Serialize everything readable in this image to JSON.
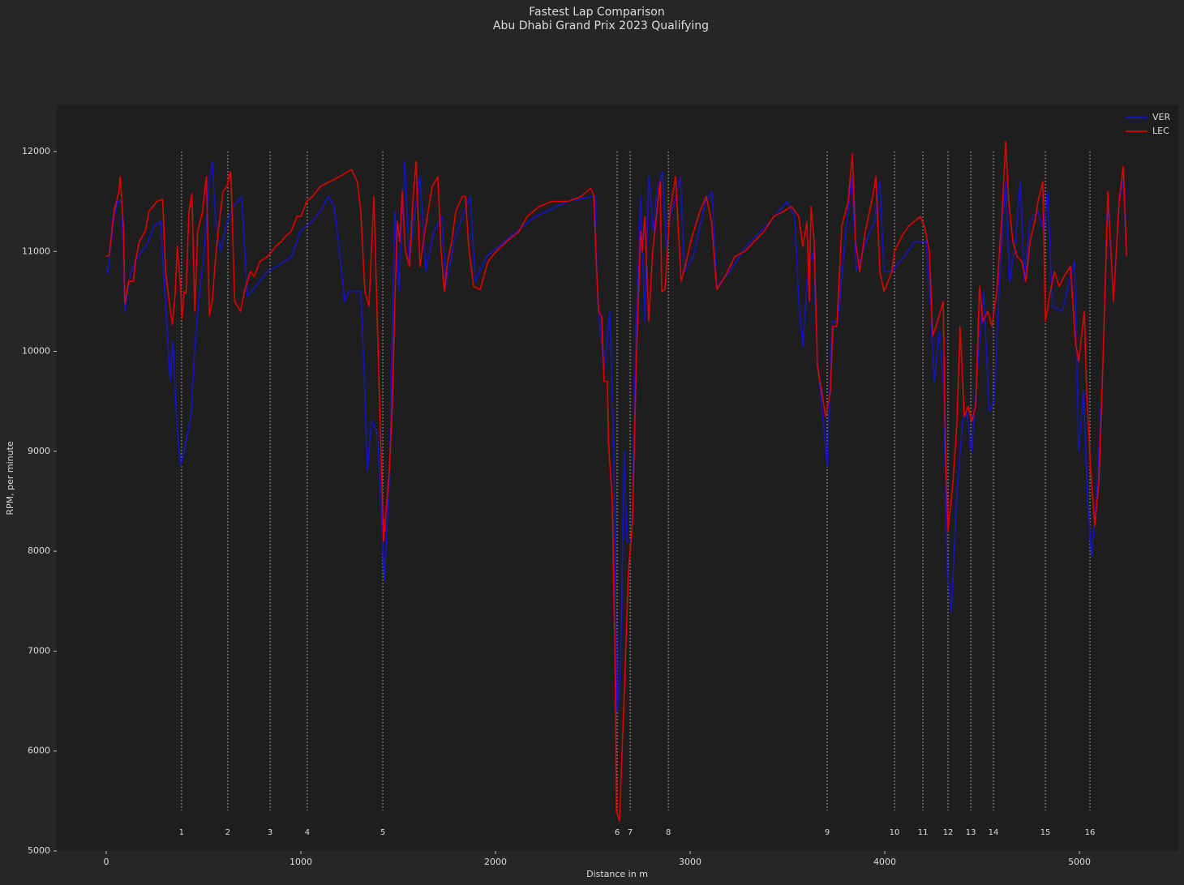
{
  "chart_data": {
    "type": "line",
    "title": "Fastest Lap Comparison",
    "subtitle": "Abu Dhabi Grand Prix 2023 Qualifying",
    "xlabel": "Distance in m",
    "ylabel": "RPM, per minute",
    "xlim": [
      -254,
      5508
    ],
    "ylim": [
      5000,
      12462
    ],
    "xticks": [
      0,
      1000,
      2000,
      3000,
      4000,
      5000
    ],
    "yticks": [
      5000,
      6000,
      7000,
      8000,
      9000,
      10000,
      11000,
      12000
    ],
    "legend": "upper right",
    "corners": {
      "numbers": [
        1,
        2,
        3,
        4,
        5,
        6,
        7,
        8,
        9,
        10,
        11,
        12,
        13,
        14,
        15,
        16
      ],
      "distance": [
        387,
        625,
        842,
        1033,
        1421,
        2625,
        2692,
        2888,
        3704,
        4050,
        4196,
        4325,
        4442,
        4558,
        4825,
        5054
      ]
    },
    "series": [
      {
        "name": "VER",
        "color": "#1414c8",
        "x": [
          0,
          8,
          37,
          58,
          79,
          96,
          121,
          162,
          204,
          246,
          279,
          304,
          329,
          342,
          362,
          383,
          421,
          437,
          454,
          475,
          504,
          529,
          546,
          562,
          587,
          621,
          654,
          696,
          725,
          767,
          829,
          892,
          954,
          996,
          1058,
          1100,
          1142,
          1171,
          1204,
          1225,
          1246,
          1308,
          1325,
          1342,
          1362,
          1392,
          1408,
          1429,
          1454,
          1483,
          1504,
          1533,
          1558,
          1579,
          1612,
          1642,
          1683,
          1725,
          1746,
          1787,
          1829,
          1871,
          1896,
          1954,
          2079,
          2204,
          2371,
          2496,
          2512,
          2525,
          2558,
          2587,
          2608,
          2625,
          2642,
          2662,
          2675,
          2700,
          2721,
          2746,
          2767,
          2787,
          2812,
          2829,
          2858,
          2879,
          2896,
          2921,
          2950,
          2971,
          3017,
          3079,
          3112,
          3137,
          3204,
          3287,
          3412,
          3496,
          3537,
          3558,
          3579,
          3604,
          3633,
          3654,
          3683,
          3704,
          3729,
          3758,
          3800,
          3829,
          3854,
          3904,
          3946,
          3975,
          3996,
          4037,
          4100,
          4154,
          4212,
          4237,
          4254,
          4279,
          4300,
          4321,
          4342,
          4371,
          4400,
          4421,
          4446,
          4483,
          4508,
          4537,
          4562,
          4592,
          4621,
          4642,
          4671,
          4696,
          4717,
          4746,
          4787,
          4817,
          4837,
          4862,
          4912,
          4954,
          4975,
          4996,
          5021,
          5042,
          5062,
          5087,
          5121,
          5146,
          5175,
          5204,
          5225,
          5242
        ],
        "values": [
          10850,
          10780,
          11300,
          11500,
          11500,
          10400,
          10750,
          10950,
          11050,
          11250,
          11300,
          10500,
          9700,
          10100,
          9300,
          8850,
          9200,
          9400,
          10000,
          10500,
          11000,
          11700,
          11900,
          11300,
          11000,
          11300,
          11450,
          11550,
          10550,
          10650,
          10800,
          10870,
          10950,
          11200,
          11300,
          11400,
          11550,
          11450,
          10900,
          10500,
          10600,
          10600,
          9800,
          8800,
          9300,
          9200,
          8600,
          7700,
          8700,
          11400,
          10600,
          11900,
          10900,
          11300,
          11750,
          10800,
          11200,
          11350,
          10650,
          11100,
          11350,
          11550,
          10700,
          10950,
          11150,
          11350,
          11500,
          11550,
          11550,
          10500,
          9800,
          10400,
          9000,
          6400,
          6800,
          9000,
          8100,
          8100,
          10200,
          11550,
          10300,
          11750,
          11200,
          11600,
          11800,
          11000,
          11350,
          11500,
          11750,
          10800,
          10950,
          11500,
          11600,
          10650,
          10800,
          11050,
          11300,
          11500,
          11350,
          10500,
          10050,
          10800,
          11000,
          9900,
          9300,
          8850,
          10300,
          10300,
          11200,
          11750,
          10800,
          11100,
          11300,
          11700,
          10800,
          10800,
          10950,
          11100,
          11100,
          10400,
          9700,
          10200,
          9700,
          7800,
          7400,
          8600,
          9300,
          9400,
          9000,
          10000,
          10600,
          9400,
          9500,
          10800,
          11700,
          10700,
          11100,
          11700,
          10700,
          11300,
          11400,
          11200,
          11600,
          10450,
          10400,
          10750,
          10900,
          9000,
          9600,
          8500,
          7950,
          8500,
          9900,
          11500,
          10500,
          11500,
          11700,
          10950
        ]
      },
      {
        "name": "LEC",
        "color": "#e00000",
        "x": [
          0,
          15,
          40,
          65,
          72,
          90,
          95,
          115,
          140,
          150,
          170,
          200,
          220,
          260,
          290,
          305,
          330,
          340,
          355,
          365,
          380,
          390,
          400,
          410,
          425,
          440,
          455,
          470,
          495,
          505,
          515,
          530,
          545,
          560,
          575,
          600,
          620,
          640,
          660,
          690,
          710,
          740,
          760,
          790,
          830,
          870,
          900,
          920,
          950,
          980,
          1000,
          1030,
          1060,
          1100,
          1200,
          1260,
          1290,
          1308,
          1329,
          1350,
          1375,
          1400,
          1425,
          1454,
          1471,
          1483,
          1496,
          1508,
          1521,
          1537,
          1558,
          1575,
          1592,
          1612,
          1629,
          1654,
          1675,
          1704,
          1721,
          1737,
          1754,
          1775,
          1796,
          1829,
          1846,
          1862,
          1887,
          1921,
          1962,
          2004,
          2058,
          2121,
          2162,
          2225,
          2287,
          2371,
          2440,
          2470,
          2490,
          2505,
          2515,
          2530,
          2545,
          2558,
          2575,
          2580,
          2600,
          2615,
          2621,
          2637,
          2662,
          2683,
          2704,
          2725,
          2746,
          2754,
          2767,
          2787,
          2808,
          2829,
          2846,
          2854,
          2871,
          2896,
          2925,
          2954,
          2980,
          3010,
          3050,
          3083,
          3110,
          3125,
          3137,
          3180,
          3230,
          3280,
          3330,
          3380,
          3430,
          3480,
          3520,
          3558,
          3579,
          3600,
          3612,
          3621,
          3637,
          3654,
          3696,
          3721,
          3733,
          3754,
          3779,
          3812,
          3833,
          3850,
          3871,
          3900,
          3933,
          3954,
          3975,
          3996,
          4037,
          4050,
          4087,
          4121,
          4183,
          4204,
          4229,
          4246,
          4271,
          4300,
          4312,
          4325,
          4350,
          4371,
          4387,
          4408,
          4429,
          4446,
          4467,
          4487,
          4504,
          4529,
          4550,
          4575,
          4600,
          4621,
          4637,
          4658,
          4679,
          4704,
          4725,
          4746,
          4771,
          4787,
          4812,
          4825,
          4846,
          4871,
          4896,
          4921,
          4954,
          4979,
          4996,
          5025,
          5037,
          5058,
          5079,
          5100,
          5121,
          5146,
          5175,
          5204,
          5225,
          5242
        ],
        "values": [
          10950,
          10960,
          11400,
          11600,
          11750,
          11200,
          10480,
          10700,
          10700,
          10900,
          11100,
          11200,
          11400,
          11500,
          11520,
          10800,
          10400,
          10270,
          10600,
          11050,
          10700,
          10330,
          10600,
          10580,
          11400,
          11580,
          10400,
          11200,
          11400,
          11600,
          11750,
          10350,
          10500,
          10900,
          11200,
          11600,
          11650,
          11800,
          10500,
          10400,
          10600,
          10800,
          10750,
          10900,
          10950,
          11050,
          11100,
          11150,
          11200,
          11350,
          11350,
          11500,
          11550,
          11650,
          11750,
          11820,
          11700,
          11400,
          10600,
          10450,
          11550,
          9800,
          8100,
          8800,
          9500,
          10500,
          11300,
          11100,
          11600,
          11000,
          10850,
          11500,
          11900,
          10850,
          11100,
          11400,
          11650,
          11750,
          11000,
          10600,
          10900,
          11100,
          11400,
          11550,
          11550,
          11050,
          10650,
          10620,
          10900,
          11000,
          11100,
          11200,
          11350,
          11450,
          11500,
          11500,
          11550,
          11600,
          11630,
          11560,
          11000,
          10400,
          10350,
          9700,
          9700,
          9100,
          8500,
          6800,
          5400,
          5300,
          6600,
          7800,
          8300,
          10000,
          11200,
          11000,
          11350,
          10300,
          11000,
          11400,
          11700,
          10600,
          10620,
          11400,
          11750,
          10700,
          10900,
          11150,
          11400,
          11550,
          11300,
          10900,
          10620,
          10750,
          10950,
          11000,
          11100,
          11200,
          11350,
          11400,
          11450,
          11350,
          11050,
          11300,
          10500,
          11450,
          11100,
          9850,
          9350,
          9600,
          10250,
          10250,
          11250,
          11500,
          11980,
          11100,
          10800,
          11200,
          11500,
          11750,
          10800,
          10600,
          10800,
          11000,
          11150,
          11250,
          11350,
          11250,
          11000,
          10150,
          10300,
          10500,
          9000,
          8200,
          8700,
          9300,
          10250,
          9350,
          9450,
          9300,
          9450,
          10650,
          10300,
          10400,
          10250,
          10600,
          11300,
          12100,
          11500,
          11100,
          10950,
          10900,
          10700,
          11100,
          11300,
          11500,
          11700,
          10300,
          10550,
          10800,
          10650,
          10750,
          10850,
          10100,
          9900,
          10400,
          9600,
          8800,
          8250,
          8700,
          9900,
          11600,
          10500,
          11500,
          11850,
          10950
        ]
      }
    ]
  }
}
